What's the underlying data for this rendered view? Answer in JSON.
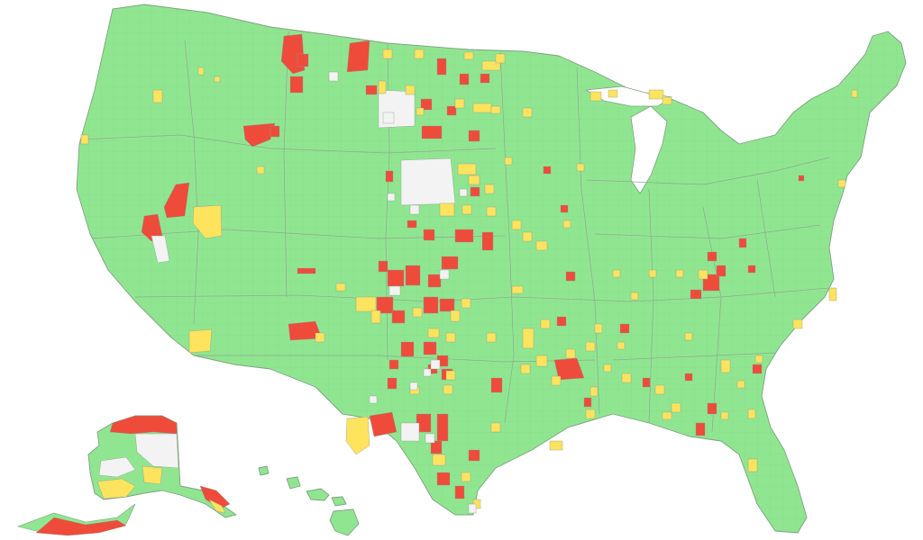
{
  "map": {
    "colors": {
      "land": "#90e690",
      "red": "#ee4b3b",
      "yellow": "#fde35e",
      "white": "#f3f3f3",
      "background": "#ffffff",
      "border": "#7f9f84"
    },
    "regions": [
      "contiguous-us",
      "alaska",
      "hawaii"
    ],
    "category_counts_note": ""
  }
}
